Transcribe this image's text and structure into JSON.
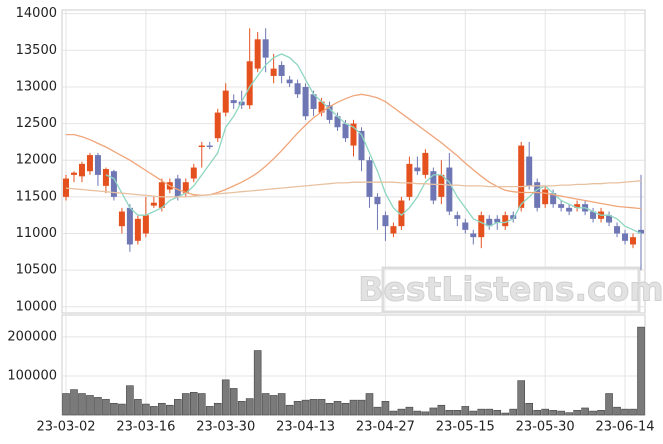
{
  "chart_data": {
    "type": "candlestick",
    "categories": [
      "23-03-02",
      null,
      null,
      null,
      null,
      null,
      null,
      null,
      null,
      null,
      "23-03-16",
      null,
      null,
      null,
      null,
      null,
      null,
      null,
      null,
      null,
      "23-03-30",
      null,
      null,
      null,
      null,
      null,
      null,
      null,
      null,
      null,
      "23-04-13",
      null,
      null,
      null,
      null,
      null,
      null,
      null,
      null,
      null,
      "23-04-27",
      null,
      null,
      null,
      null,
      null,
      null,
      null,
      null,
      null,
      "23-05-15",
      null,
      null,
      null,
      null,
      null,
      null,
      null,
      null,
      null,
      "23-05-30",
      null,
      null,
      null,
      null,
      null,
      null,
      null,
      null,
      null,
      "23-06-14",
      null,
      null
    ],
    "open": [
      11500,
      11800,
      11780,
      11850,
      12070,
      11650,
      11850,
      11100,
      11350,
      10900,
      11000,
      11380,
      11350,
      11600,
      11750,
      11550,
      11750,
      12180,
      12200,
      12300,
      12650,
      12820,
      12800,
      12750,
      13250,
      13650,
      13150,
      13300,
      13100,
      13050,
      13000,
      12900,
      12650,
      12750,
      12600,
      12500,
      12200,
      12400,
      12000,
      11500,
      11250,
      11000,
      11100,
      11500,
      11900,
      11800,
      11850,
      11500,
      11900,
      11250,
      11150,
      11000,
      10950,
      11200,
      11200,
      11100,
      11250,
      11350,
      12050,
      11700,
      11400,
      11550,
      11400,
      11350,
      11350,
      11400,
      11300,
      11200,
      11250,
      11100,
      11000,
      10850,
      11050
    ],
    "high": [
      11800,
      11850,
      11980,
      12100,
      12100,
      11900,
      11870,
      11350,
      11400,
      11250,
      11500,
      11500,
      11750,
      11750,
      11800,
      11750,
      11950,
      12250,
      12250,
      12700,
      13050,
      12900,
      12950,
      13800,
      13750,
      13800,
      13450,
      13350,
      13150,
      13100,
      13050,
      12950,
      12850,
      12800,
      12650,
      12550,
      12550,
      12450,
      12050,
      11550,
      11300,
      11150,
      11500,
      12050,
      12050,
      12150,
      11900,
      12000,
      12100,
      11300,
      11200,
      11050,
      11300,
      11250,
      11250,
      11300,
      11300,
      12250,
      12250,
      11750,
      11650,
      11600,
      11450,
      11400,
      11450,
      11450,
      11350,
      11350,
      11300,
      11150,
      11050,
      11000,
      11800
    ],
    "low": [
      11450,
      11700,
      11700,
      11800,
      11650,
      11550,
      11450,
      11000,
      10750,
      10850,
      10950,
      11350,
      11300,
      11550,
      11450,
      11500,
      11700,
      11900,
      12150,
      12250,
      12600,
      12700,
      12700,
      12700,
      13200,
      13200,
      13050,
      13050,
      13000,
      12850,
      12550,
      12600,
      12600,
      12500,
      12400,
      12250,
      12050,
      11850,
      11350,
      11050,
      10900,
      10950,
      11050,
      11450,
      11800,
      11750,
      11400,
      11400,
      11250,
      11100,
      11000,
      10850,
      10800,
      11050,
      11050,
      11050,
      11150,
      11300,
      11600,
      11300,
      11350,
      11350,
      11300,
      11250,
      11300,
      11250,
      11150,
      11150,
      11100,
      10950,
      10850,
      10800,
      10500
    ],
    "close": [
      11750,
      11830,
      11950,
      12070,
      11800,
      11880,
      11500,
      11300,
      10850,
      11200,
      11250,
      11420,
      11700,
      11700,
      11500,
      11700,
      11900,
      12200,
      12180,
      12650,
      12950,
      12780,
      12750,
      13350,
      13650,
      13400,
      13250,
      13150,
      13050,
      12900,
      12600,
      12700,
      12800,
      12550,
      12450,
      12300,
      12500,
      12000,
      11500,
      11400,
      11100,
      11100,
      11450,
      11950,
      11850,
      12100,
      11450,
      11800,
      11300,
      11200,
      11050,
      10950,
      11250,
      11100,
      11150,
      11250,
      11200,
      12200,
      11650,
      11350,
      11600,
      11400,
      11350,
      11300,
      11400,
      11300,
      11200,
      11300,
      11150,
      11000,
      10900,
      10950,
      11000
    ],
    "up_color": "#e4511f",
    "down_color": "#6e76b4",
    "ylim": [
      9915,
      14050
    ],
    "yticks": [
      10000,
      10500,
      11000,
      11500,
      12000,
      12500,
      13000,
      13500,
      14000
    ],
    "grid": true,
    "ma_lines": [
      {
        "color": "#8fd6c2",
        "values": [
          null,
          null,
          null,
          null,
          null,
          11800,
          11750,
          11550,
          11350,
          11250,
          11250,
          11300,
          11350,
          11450,
          11500,
          11550,
          11650,
          11800,
          11950,
          12100,
          12450,
          12600,
          12800,
          13000,
          13150,
          13300,
          13400,
          13450,
          13400,
          13300,
          13100,
          12900,
          12800,
          12700,
          12600,
          12500,
          12450,
          12350,
          12100,
          11850,
          11550,
          11350,
          11250,
          11350,
          11500,
          11700,
          11800,
          11800,
          11700,
          11500,
          11350,
          11200,
          11150,
          11100,
          11150,
          11150,
          11200,
          11400,
          11500,
          11600,
          11650,
          11550,
          11450,
          11400,
          11350,
          11350,
          11300,
          11250,
          11250,
          11200,
          11100,
          11050,
          11000
        ]
      },
      {
        "color": "#f0a57a",
        "values": [
          12350,
          12350,
          12320,
          12280,
          12230,
          12180,
          12120,
          12060,
          12000,
          11930,
          11860,
          11790,
          11720,
          11650,
          11600,
          11560,
          11530,
          11520,
          11530,
          11560,
          11600,
          11650,
          11700,
          11760,
          11830,
          11920,
          12020,
          12130,
          12250,
          12370,
          12480,
          12580,
          12660,
          12730,
          12790,
          12840,
          12880,
          12900,
          12880,
          12850,
          12800,
          12720,
          12640,
          12560,
          12480,
          12400,
          12320,
          12240,
          12150,
          12060,
          11960,
          11870,
          11780,
          11700,
          11640,
          11590,
          11570,
          11560,
          11560,
          11560,
          11550,
          11530,
          11510,
          11490,
          11470,
          11450,
          11430,
          11410,
          11390,
          11370,
          11360,
          11350,
          11340
        ]
      },
      {
        "color": "#e8c2a0",
        "values": [
          11620,
          11610,
          11600,
          11590,
          11580,
          11570,
          11560,
          11550,
          11540,
          11530,
          11520,
          11510,
          11500,
          11500,
          11500,
          11500,
          11510,
          11520,
          11530,
          11540,
          11550,
          11560,
          11570,
          11580,
          11590,
          11600,
          11610,
          11620,
          11630,
          11640,
          11650,
          11660,
          11670,
          11680,
          11690,
          11690,
          11700,
          11700,
          11700,
          11700,
          11700,
          11700,
          11690,
          11690,
          11680,
          11680,
          11670,
          11670,
          11660,
          11660,
          11650,
          11650,
          11650,
          11640,
          11640,
          11640,
          11640,
          11640,
          11650,
          11650,
          11650,
          11650,
          11660,
          11660,
          11670,
          11670,
          11680,
          11680,
          11690,
          11690,
          11700,
          11710,
          11720
        ]
      }
    ],
    "volume": {
      "color": "#7a7a7a",
      "values": [
        55000,
        65000,
        55000,
        50000,
        45000,
        40000,
        30000,
        28000,
        75000,
        40000,
        28000,
        22000,
        30000,
        25000,
        40000,
        55000,
        58000,
        55000,
        22000,
        30000,
        90000,
        68000,
        35000,
        42000,
        165000,
        55000,
        50000,
        55000,
        25000,
        35000,
        38000,
        40000,
        40000,
        30000,
        35000,
        30000,
        38000,
        38000,
        55000,
        20000,
        35000,
        10000,
        15000,
        20000,
        10000,
        8000,
        18000,
        25000,
        12000,
        12000,
        22000,
        10000,
        15000,
        15000,
        12000,
        5000,
        15000,
        88000,
        30000,
        12000,
        15000,
        12000,
        10000,
        6000,
        12000,
        18000,
        10000,
        12000,
        55000,
        20000,
        15000,
        15000,
        225000
      ],
      "ylim": [
        0,
        256000
      ],
      "yticks": [
        100000,
        200000
      ]
    },
    "watermark": "BestListens.com"
  }
}
